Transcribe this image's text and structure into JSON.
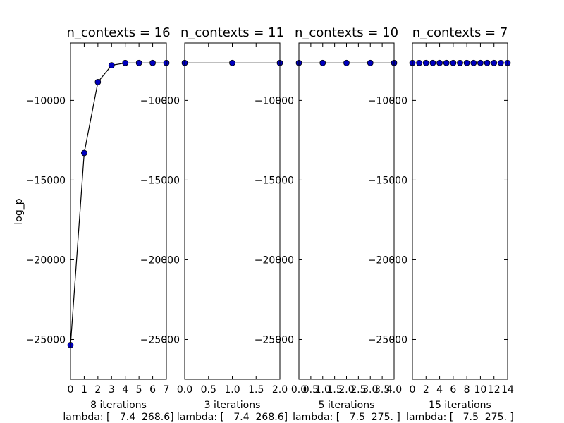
{
  "figure": {
    "ylabel": "log_p"
  },
  "chart_data": [
    {
      "type": "line",
      "title": "n_contexts = 16",
      "xlabel": "8 iterations",
      "footer": "lambda: [   7.4  268.6]",
      "x": [
        0,
        1,
        2,
        3,
        4,
        5,
        6,
        7
      ],
      "values": [
        -25350,
        -13300,
        -8850,
        -7800,
        -7650,
        -7650,
        -7650,
        -7650
      ],
      "xlim": [
        0,
        7
      ],
      "ylim": [
        -27500,
        -6400
      ],
      "xticks": [
        0,
        1,
        2,
        3,
        4,
        5,
        6,
        7
      ],
      "xtick_labels": [
        "0",
        "1",
        "2",
        "3",
        "4",
        "5",
        "6",
        "7"
      ],
      "yticks": [
        -25000,
        -20000,
        -15000,
        -10000
      ],
      "ytick_labels": [
        "−25000",
        "−20000",
        "−15000",
        "−10000"
      ],
      "ylabel": "log_p",
      "grid": false,
      "line_color": "#000000",
      "marker_color": "#0000bf"
    },
    {
      "type": "line",
      "title": "n_contexts = 11",
      "xlabel": "3 iterations",
      "footer": "lambda: [   7.4  268.6]",
      "x": [
        0,
        1,
        2
      ],
      "values": [
        -7650,
        -7650,
        -7650
      ],
      "xlim": [
        0,
        2
      ],
      "ylim": [
        -27500,
        -6400
      ],
      "xticks": [
        0,
        0.5,
        1,
        1.5,
        2
      ],
      "xtick_labels": [
        "0.0",
        "0.5",
        "1.0",
        "1.5",
        "2.0"
      ],
      "yticks": [
        -25000,
        -20000,
        -15000,
        -10000
      ],
      "ytick_labels": [
        "−25000",
        "−20000",
        "−15000",
        "−10000"
      ],
      "grid": false,
      "line_color": "#000000",
      "marker_color": "#0000bf"
    },
    {
      "type": "line",
      "title": "n_contexts = 10",
      "xlabel": "5 iterations",
      "footer": "lambda: [   7.5  275. ]",
      "x": [
        0,
        1,
        2,
        3,
        4
      ],
      "values": [
        -7650,
        -7650,
        -7650,
        -7650,
        -7650
      ],
      "xlim": [
        0,
        4
      ],
      "ylim": [
        -27500,
        -6400
      ],
      "xticks": [
        0,
        0.5,
        1,
        1.5,
        2,
        2.5,
        3,
        3.5,
        4
      ],
      "xtick_labels": [
        "0.0",
        "0.5",
        "1.0",
        "1.5",
        "2.0",
        "2.5",
        "3.0",
        "3.5",
        "4.0"
      ],
      "yticks": [
        -25000,
        -20000,
        -15000,
        -10000
      ],
      "ytick_labels": [
        "−25000",
        "−20000",
        "−15000",
        "−10000"
      ],
      "grid": false,
      "line_color": "#000000",
      "marker_color": "#0000bf"
    },
    {
      "type": "line",
      "title": "n_contexts = 7",
      "xlabel": "15 iterations",
      "footer": "lambda: [   7.5  275. ]",
      "x": [
        0,
        1,
        2,
        3,
        4,
        5,
        6,
        7,
        8,
        9,
        10,
        11,
        12,
        13,
        14
      ],
      "values": [
        -7650,
        -7650,
        -7650,
        -7650,
        -7650,
        -7650,
        -7650,
        -7650,
        -7650,
        -7650,
        -7650,
        -7650,
        -7650,
        -7650,
        -7650
      ],
      "xlim": [
        0,
        14
      ],
      "ylim": [
        -27500,
        -6400
      ],
      "xticks": [
        0,
        2,
        4,
        6,
        8,
        10,
        12,
        14
      ],
      "xtick_labels": [
        "0",
        "2",
        "4",
        "6",
        "8",
        "10",
        "12",
        "14"
      ],
      "yticks": [
        -25000,
        -20000,
        -15000,
        -10000
      ],
      "ytick_labels": [
        "−25000",
        "−20000",
        "−15000",
        "−10000"
      ],
      "grid": false,
      "line_color": "#000000",
      "marker_color": "#0000bf"
    }
  ]
}
